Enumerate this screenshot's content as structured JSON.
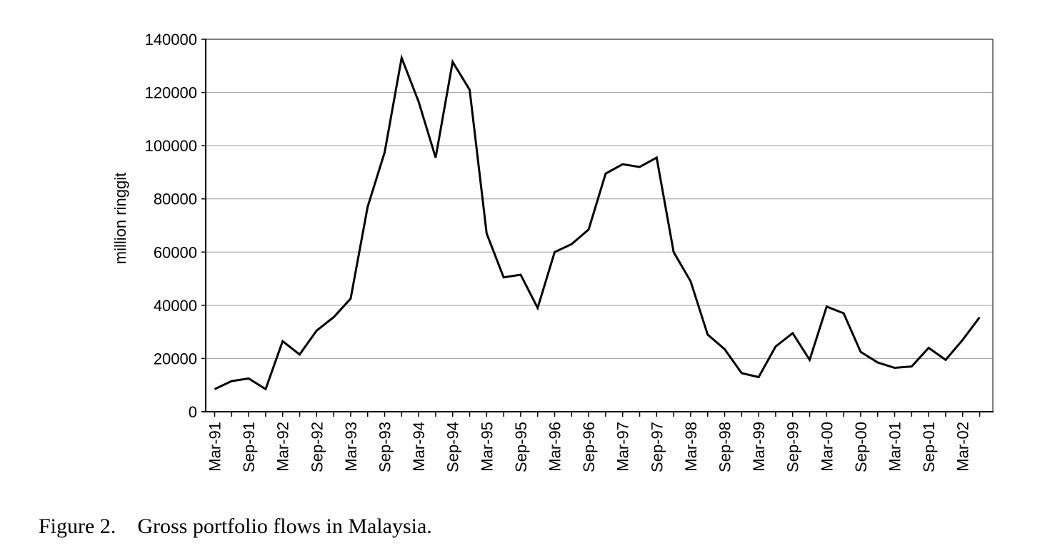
{
  "chart_data": {
    "type": "line",
    "title": "",
    "xlabel": "",
    "ylabel": "million ringgit",
    "ylim": [
      0,
      140000
    ],
    "yticks": [
      0,
      20000,
      40000,
      60000,
      80000,
      100000,
      120000,
      140000
    ],
    "ytick_labels": [
      "0",
      "20000",
      "40000",
      "60000",
      "80000",
      "100000",
      "120000",
      "140000"
    ],
    "grid": "horizontal",
    "legend": "none",
    "line_color": "#000000",
    "x_tick_labels": [
      "Mar-91",
      "Sep-91",
      "Mar-92",
      "Sep-92",
      "Mar-93",
      "Sep-93",
      "Mar-94",
      "Sep-94",
      "Mar-95",
      "Sep-95",
      "Mar-96",
      "Sep-96",
      "Mar-97",
      "Sep-97",
      "Mar-98",
      "Sep-98",
      "Mar-99",
      "Sep-99",
      "Mar-00",
      "Sep-00",
      "Mar-01",
      "Sep-01",
      "Mar-02"
    ],
    "x": [
      "Mar-91",
      "Jun-91",
      "Sep-91",
      "Dec-91",
      "Mar-92",
      "Jun-92",
      "Sep-92",
      "Dec-92",
      "Mar-93",
      "Jun-93",
      "Sep-93",
      "Dec-93",
      "Mar-94",
      "Jun-94",
      "Sep-94",
      "Dec-94",
      "Mar-95",
      "Jun-95",
      "Sep-95",
      "Dec-95",
      "Mar-96",
      "Jun-96",
      "Sep-96",
      "Dec-96",
      "Mar-97",
      "Jun-97",
      "Sep-97",
      "Dec-97",
      "Mar-98",
      "Jun-98",
      "Sep-98",
      "Dec-98",
      "Mar-99",
      "Jun-99",
      "Sep-99",
      "Dec-99",
      "Mar-00",
      "Jun-00",
      "Sep-00",
      "Dec-00",
      "Mar-01",
      "Jun-01",
      "Sep-01",
      "Dec-01",
      "Mar-02",
      "Jun-02"
    ],
    "series": [
      {
        "values": [
          8500,
          11500,
          12500,
          8500,
          26500,
          21500,
          30500,
          35500,
          42500,
          77000,
          97500,
          133000,
          116500,
          95500,
          131500,
          121000,
          67000,
          50500,
          51500,
          39000,
          60000,
          63000,
          68500,
          89500,
          93000,
          92000,
          95500,
          60000,
          49000,
          29000,
          23500,
          14500,
          13000,
          24500,
          29500,
          19500,
          39500,
          37000,
          22500,
          18500,
          16500,
          17000,
          24000,
          19500,
          27000,
          35500
        ]
      }
    ]
  },
  "caption": {
    "label": "Figure 2.",
    "text": "Gross portfolio flows in Malaysia."
  }
}
